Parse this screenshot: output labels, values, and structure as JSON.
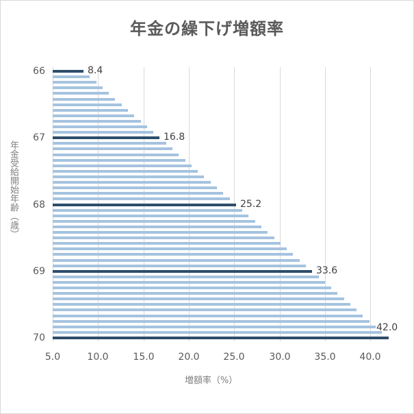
{
  "chart_data": {
    "type": "bar",
    "orientation": "horizontal",
    "title": "年金の繰下げ増額率",
    "xlabel": "増額率（%）",
    "ylabel": "年金受給開始年齢（歳）",
    "xlim": [
      5.0,
      42.0
    ],
    "x_ticks": [
      "5.0",
      "10.0",
      "15.0",
      "20.0",
      "25.0",
      "30.0",
      "35.0",
      "40.0"
    ],
    "y_ticks": [
      "66",
      "67",
      "68",
      "69",
      "70"
    ],
    "grid": "vertical",
    "legend": null,
    "colors": {
      "highlight": "#2e4d6b",
      "normal": "#a5c3df",
      "grid": "#d9d9d9",
      "text": "#595959"
    },
    "categories": [
      "66",
      "66.1",
      "66.2",
      "66.3",
      "66.4",
      "66.5",
      "66.6",
      "66.7",
      "66.8",
      "66.9",
      "66.10",
      "66.11",
      "67",
      "67.1",
      "67.2",
      "67.3",
      "67.4",
      "67.5",
      "67.6",
      "67.7",
      "67.8",
      "67.9",
      "67.10",
      "67.11",
      "68",
      "68.1",
      "68.2",
      "68.3",
      "68.4",
      "68.5",
      "68.6",
      "68.7",
      "68.8",
      "68.9",
      "68.10",
      "68.11",
      "69",
      "69.1",
      "69.2",
      "69.3",
      "69.4",
      "69.5",
      "69.6",
      "69.7",
      "69.8",
      "69.9",
      "69.10",
      "69.11",
      "70"
    ],
    "values": [
      8.4,
      9.1,
      9.8,
      10.5,
      11.2,
      11.9,
      12.6,
      13.3,
      14.0,
      14.7,
      15.4,
      16.1,
      16.8,
      17.5,
      18.2,
      18.9,
      19.6,
      20.3,
      21.0,
      21.7,
      22.4,
      23.1,
      23.8,
      24.5,
      25.2,
      25.9,
      26.6,
      27.3,
      28.0,
      28.7,
      29.4,
      30.1,
      30.8,
      31.5,
      32.2,
      32.9,
      33.6,
      34.3,
      35.0,
      35.7,
      36.4,
      37.1,
      37.8,
      38.5,
      39.2,
      39.9,
      40.6,
      41.3,
      42.0
    ],
    "data_labels": [
      {
        "category": "66",
        "value": "8.4"
      },
      {
        "category": "67",
        "value": "16.8"
      },
      {
        "category": "68",
        "value": "25.2"
      },
      {
        "category": "69",
        "value": "33.6"
      },
      {
        "category": "70",
        "value": "42.0"
      }
    ]
  }
}
